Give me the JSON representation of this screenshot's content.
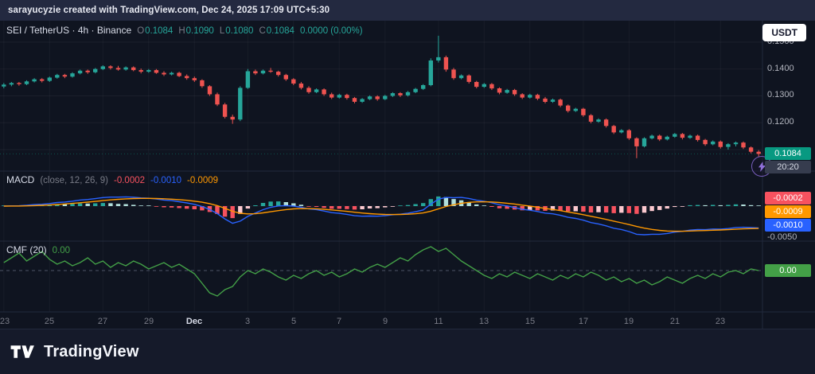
{
  "attribution": "sarayucyzie created with TradingView.com, Dec 24, 2025 17:09 UTC+5:30",
  "currency_button": "USDT",
  "symbol_bar": {
    "title": "SEI / TetherUS · 4h · Binance",
    "o_label": "O",
    "o": "0.1084",
    "h_label": "H",
    "h": "0.1090",
    "l_label": "L",
    "l": "0.1080",
    "c_label": "C",
    "c": "0.1084",
    "change": "0.0000 (0.00%)"
  },
  "price_axis": {
    "ticks": [
      "0.1500",
      "0.1400",
      "0.1300",
      "0.1200"
    ],
    "last_price": "0.1084",
    "countdown": "20:20"
  },
  "macd_panel": {
    "name": "MACD",
    "params": "(close, 12, 26, 9)",
    "hist_value": "-0.0002",
    "macd_value": "-0.0010",
    "signal_value": "-0.0009",
    "badge_hist": "-0.0002",
    "badge_signal": "-0.0009",
    "badge_macd": "-0.0010",
    "axis_tick": "-0.0050"
  },
  "cmf_panel": {
    "title": "CMF (20)",
    "value": "0.00",
    "badge": "0.00"
  },
  "footer": {
    "brand": "TradingView"
  },
  "colors": {
    "up": "#26a69a",
    "down": "#ef5350",
    "last_badge": "#089981",
    "macd_line": "#2962ff",
    "signal_line": "#ff9800",
    "hist_up": "#26a69a",
    "hist_up_weak": "#b2dfdb",
    "hist_down": "#f7525f",
    "hist_down_weak": "#fbc9cf",
    "cmf_line": "#43a047"
  },
  "chart_data": [
    {
      "type": "candlestick",
      "symbol": "SEI / TetherUS",
      "interval": "4h",
      "exchange": "Binance",
      "ohlc_display": {
        "open": 0.1084,
        "high": 0.109,
        "low": 0.108,
        "close": 0.1084,
        "change": "0.0000 (0.00%)"
      },
      "last_price": 0.1084,
      "ylim": [
        0.102,
        0.158
      ],
      "y_grid": [
        0.11,
        0.12,
        0.13,
        0.14,
        0.15
      ],
      "x_ticks": [
        {
          "label": "23",
          "i": 0
        },
        {
          "label": "25",
          "i": 6
        },
        {
          "label": "27",
          "i": 13
        },
        {
          "label": "29",
          "i": 19
        },
        {
          "label": "Dec",
          "i": 25,
          "major": true
        },
        {
          "label": "3",
          "i": 32
        },
        {
          "label": "5",
          "i": 38
        },
        {
          "label": "7",
          "i": 44
        },
        {
          "label": "9",
          "i": 50
        },
        {
          "label": "11",
          "i": 57
        },
        {
          "label": "13",
          "i": 63
        },
        {
          "label": "15",
          "i": 69
        },
        {
          "label": "17",
          "i": 76
        },
        {
          "label": "19",
          "i": 82
        },
        {
          "label": "21",
          "i": 88
        },
        {
          "label": "23",
          "i": 94
        }
      ],
      "candles": [
        [
          0.1335,
          0.1348,
          0.1328,
          0.1342
        ],
        [
          0.1342,
          0.1352,
          0.1336,
          0.1348
        ],
        [
          0.1348,
          0.1352,
          0.1338,
          0.1344
        ],
        [
          0.1344,
          0.1358,
          0.134,
          0.1354
        ],
        [
          0.1354,
          0.1366,
          0.135,
          0.1362
        ],
        [
          0.1362,
          0.1366,
          0.135,
          0.1356
        ],
        [
          0.1356,
          0.1372,
          0.1352,
          0.1368
        ],
        [
          0.1368,
          0.1382,
          0.1364,
          0.1378
        ],
        [
          0.1378,
          0.1382,
          0.1366,
          0.1372
        ],
        [
          0.1372,
          0.1388,
          0.1368,
          0.1384
        ],
        [
          0.1384,
          0.1398,
          0.138,
          0.1394
        ],
        [
          0.1394,
          0.1398,
          0.1382,
          0.1388
        ],
        [
          0.1388,
          0.1404,
          0.1384,
          0.14
        ],
        [
          0.14,
          0.1414,
          0.1396,
          0.141
        ],
        [
          0.141,
          0.1414,
          0.1398,
          0.1404
        ],
        [
          0.1404,
          0.1412,
          0.1394,
          0.1398
        ],
        [
          0.1398,
          0.141,
          0.1394,
          0.1406
        ],
        [
          0.1406,
          0.141,
          0.1392,
          0.1396
        ],
        [
          0.1396,
          0.1402,
          0.1384,
          0.139
        ],
        [
          0.139,
          0.14,
          0.1386,
          0.1396
        ],
        [
          0.1396,
          0.14,
          0.1382,
          0.1386
        ],
        [
          0.1386,
          0.1392,
          0.1374,
          0.138
        ],
        [
          0.138,
          0.139,
          0.1376,
          0.1386
        ],
        [
          0.1386,
          0.139,
          0.137,
          0.1374
        ],
        [
          0.1374,
          0.138,
          0.136,
          0.1366
        ],
        [
          0.1366,
          0.1372,
          0.1352,
          0.1358
        ],
        [
          0.1358,
          0.1362,
          0.133,
          0.1336
        ],
        [
          0.1336,
          0.134,
          0.13,
          0.1306
        ],
        [
          0.1306,
          0.1312,
          0.1262,
          0.1268
        ],
        [
          0.1268,
          0.1274,
          0.1216,
          0.1222
        ],
        [
          0.1222,
          0.123,
          0.1196,
          0.1212
        ],
        [
          0.1212,
          0.1336,
          0.1206,
          0.133
        ],
        [
          0.133,
          0.14,
          0.1326,
          0.1392
        ],
        [
          0.1392,
          0.1398,
          0.1378,
          0.1384
        ],
        [
          0.1384,
          0.1398,
          0.138,
          0.1394
        ],
        [
          0.1394,
          0.1404,
          0.1386,
          0.139
        ],
        [
          0.139,
          0.1394,
          0.1372,
          0.1378
        ],
        [
          0.1378,
          0.1382,
          0.1356,
          0.1362
        ],
        [
          0.1362,
          0.1366,
          0.134,
          0.1346
        ],
        [
          0.1346,
          0.1352,
          0.1324,
          0.133
        ],
        [
          0.133,
          0.1336,
          0.1308,
          0.1314
        ],
        [
          0.1314,
          0.1328,
          0.131,
          0.1324
        ],
        [
          0.1324,
          0.1328,
          0.13,
          0.1306
        ],
        [
          0.1306,
          0.1312,
          0.1288,
          0.1294
        ],
        [
          0.1294,
          0.1308,
          0.129,
          0.1304
        ],
        [
          0.1304,
          0.1308,
          0.1286,
          0.1292
        ],
        [
          0.1292,
          0.1296,
          0.1272,
          0.1278
        ],
        [
          0.1278,
          0.1292,
          0.1274,
          0.1288
        ],
        [
          0.1288,
          0.1302,
          0.1284,
          0.1298
        ],
        [
          0.1298,
          0.1302,
          0.1282,
          0.1288
        ],
        [
          0.1288,
          0.1304,
          0.1284,
          0.13
        ],
        [
          0.13,
          0.1314,
          0.1296,
          0.131
        ],
        [
          0.131,
          0.1314,
          0.1296,
          0.1302
        ],
        [
          0.1302,
          0.1318,
          0.1298,
          0.1314
        ],
        [
          0.1314,
          0.133,
          0.131,
          0.1326
        ],
        [
          0.1326,
          0.1344,
          0.1322,
          0.134
        ],
        [
          0.134,
          0.144,
          0.1336,
          0.1432
        ],
        [
          0.1432,
          0.1524,
          0.1424,
          0.1444
        ],
        [
          0.1444,
          0.145,
          0.139,
          0.1398
        ],
        [
          0.1398,
          0.1404,
          0.136,
          0.1366
        ],
        [
          0.1366,
          0.138,
          0.1362,
          0.1376
        ],
        [
          0.1376,
          0.138,
          0.1346,
          0.1352
        ],
        [
          0.1352,
          0.1356,
          0.1328,
          0.1334
        ],
        [
          0.1334,
          0.1348,
          0.133,
          0.1344
        ],
        [
          0.1344,
          0.1348,
          0.1322,
          0.1328
        ],
        [
          0.1328,
          0.1332,
          0.1306,
          0.1312
        ],
        [
          0.1312,
          0.1326,
          0.1308,
          0.1322
        ],
        [
          0.1322,
          0.1326,
          0.13,
          0.1306
        ],
        [
          0.1306,
          0.131,
          0.1288,
          0.1294
        ],
        [
          0.1294,
          0.1308,
          0.129,
          0.1304
        ],
        [
          0.1304,
          0.1308,
          0.1284,
          0.129
        ],
        [
          0.129,
          0.1296,
          0.1272,
          0.1278
        ],
        [
          0.1278,
          0.129,
          0.1274,
          0.1286
        ],
        [
          0.1286,
          0.129,
          0.1258,
          0.1264
        ],
        [
          0.1264,
          0.1268,
          0.1238,
          0.1244
        ],
        [
          0.1244,
          0.1256,
          0.124,
          0.1252
        ],
        [
          0.1252,
          0.1256,
          0.1222,
          0.1228
        ],
        [
          0.1228,
          0.1232,
          0.1198,
          0.1204
        ],
        [
          0.1204,
          0.1216,
          0.12,
          0.1212
        ],
        [
          0.1212,
          0.1216,
          0.1182,
          0.1188
        ],
        [
          0.1188,
          0.1192,
          0.1158,
          0.1164
        ],
        [
          0.1164,
          0.1176,
          0.116,
          0.1172
        ],
        [
          0.1172,
          0.1176,
          0.1136,
          0.1142
        ],
        [
          0.1142,
          0.1146,
          0.1068,
          0.1112
        ],
        [
          0.1112,
          0.1146,
          0.1108,
          0.1142
        ],
        [
          0.1142,
          0.1156,
          0.1138,
          0.1152
        ],
        [
          0.1152,
          0.1156,
          0.1132,
          0.1138
        ],
        [
          0.1138,
          0.1152,
          0.1134,
          0.1148
        ],
        [
          0.1148,
          0.1162,
          0.1144,
          0.1158
        ],
        [
          0.1158,
          0.1162,
          0.1138,
          0.1144
        ],
        [
          0.1144,
          0.1156,
          0.114,
          0.1152
        ],
        [
          0.1152,
          0.1156,
          0.113,
          0.1136
        ],
        [
          0.1136,
          0.114,
          0.1114,
          0.112
        ],
        [
          0.112,
          0.1134,
          0.1116,
          0.113
        ],
        [
          0.113,
          0.1134,
          0.1104,
          0.111
        ],
        [
          0.111,
          0.1124,
          0.11,
          0.112
        ],
        [
          0.112,
          0.113,
          0.1112,
          0.1126
        ],
        [
          0.1126,
          0.113,
          0.1102,
          0.1108
        ],
        [
          0.1108,
          0.1112,
          0.1086,
          0.1092
        ],
        [
          0.1092,
          0.1098,
          0.1074,
          0.1084
        ]
      ]
    },
    {
      "type": "macd",
      "title": "MACD (close, 12, 26, 9)",
      "source": "close",
      "fast": 12,
      "slow": 26,
      "signal": 9,
      "last_values": {
        "histogram": -0.0002,
        "macd": -0.001,
        "signal": -0.0009
      }
    },
    {
      "type": "line",
      "name": "CMF (20)",
      "period": 20,
      "last": 0.0,
      "zero_line_dashed": true,
      "values": [
        0.05,
        0.08,
        0.11,
        0.06,
        0.09,
        0.12,
        0.07,
        0.04,
        0.06,
        0.03,
        0.05,
        0.08,
        0.04,
        0.06,
        0.02,
        0.05,
        0.03,
        0.06,
        0.04,
        0.01,
        0.03,
        0.05,
        0.02,
        0.04,
        0.01,
        -0.02,
        -0.08,
        -0.14,
        -0.16,
        -0.12,
        -0.1,
        -0.04,
        0.0,
        -0.02,
        0.01,
        -0.01,
        -0.04,
        -0.06,
        -0.03,
        -0.05,
        -0.02,
        0.0,
        -0.03,
        -0.01,
        -0.04,
        -0.02,
        0.01,
        -0.01,
        0.02,
        0.04,
        0.02,
        0.05,
        0.08,
        0.06,
        0.1,
        0.13,
        0.15,
        0.12,
        0.14,
        0.1,
        0.06,
        0.03,
        0.0,
        -0.03,
        -0.05,
        -0.02,
        -0.04,
        -0.01,
        -0.03,
        -0.05,
        -0.02,
        -0.04,
        -0.06,
        -0.03,
        -0.05,
        -0.02,
        -0.04,
        -0.01,
        -0.03,
        -0.06,
        -0.04,
        -0.07,
        -0.05,
        -0.08,
        -0.06,
        -0.09,
        -0.07,
        -0.04,
        -0.06,
        -0.08,
        -0.05,
        -0.03,
        -0.05,
        -0.02,
        -0.04,
        -0.01,
        0.0,
        -0.02,
        0.01,
        0.0
      ]
    }
  ]
}
